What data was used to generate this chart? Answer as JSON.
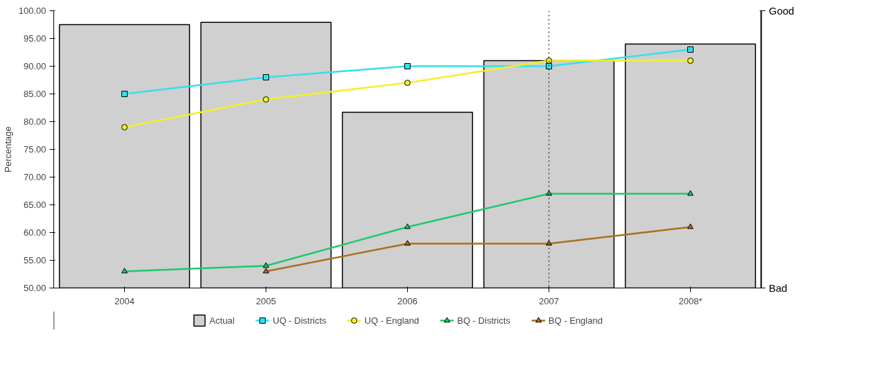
{
  "chart_data": {
    "type": "bar",
    "ylabel": "Percentage",
    "categories": [
      "2004",
      "2005",
      "2006",
      "2007",
      "2008*"
    ],
    "series": [
      {
        "name": "Actual",
        "color": "#d0d0d0",
        "values": [
          97.5,
          97.9,
          81.7,
          91.0,
          94.0
        ]
      },
      {
        "name": "UQ - Districts",
        "type": "line",
        "color": "#33e0ea",
        "marker": "square",
        "values": [
          85,
          88,
          90,
          90,
          93
        ]
      },
      {
        "name": "UQ - England",
        "type": "line",
        "color": "#f5ef2a",
        "marker": "circle",
        "values": [
          79,
          84,
          87,
          91,
          91
        ]
      },
      {
        "name": "BQ - Districts",
        "type": "line",
        "color": "#1dc86a",
        "marker": "triangle",
        "values": [
          53,
          54,
          61,
          67,
          67
        ]
      },
      {
        "name": "BQ - England",
        "type": "line",
        "color": "#a8701e",
        "marker": "triangle",
        "values": [
          null,
          53,
          58,
          58,
          61
        ]
      }
    ],
    "ylim": [
      50,
      100
    ],
    "yticks": [
      {
        "value": 50,
        "label": "50.00"
      },
      {
        "value": 55,
        "label": "55.00"
      },
      {
        "value": 60,
        "label": "60.00"
      },
      {
        "value": 65,
        "label": "65.00"
      },
      {
        "value": 70,
        "label": "70.00"
      },
      {
        "value": 75,
        "label": "75.00"
      },
      {
        "value": 80,
        "label": "80.00"
      },
      {
        "value": 85,
        "label": "85.00"
      },
      {
        "value": 90,
        "label": "90.00"
      },
      {
        "value": 95,
        "label": "95.00"
      },
      {
        "value": 100,
        "label": "100.00"
      }
    ],
    "annotations": [
      "Good",
      "Bad"
    ],
    "ref_lines": [
      {
        "axis": "x",
        "value": "2007",
        "line_style": "dotted",
        "color": "#000000"
      }
    ],
    "legend": "bottom",
    "grid": false
  }
}
